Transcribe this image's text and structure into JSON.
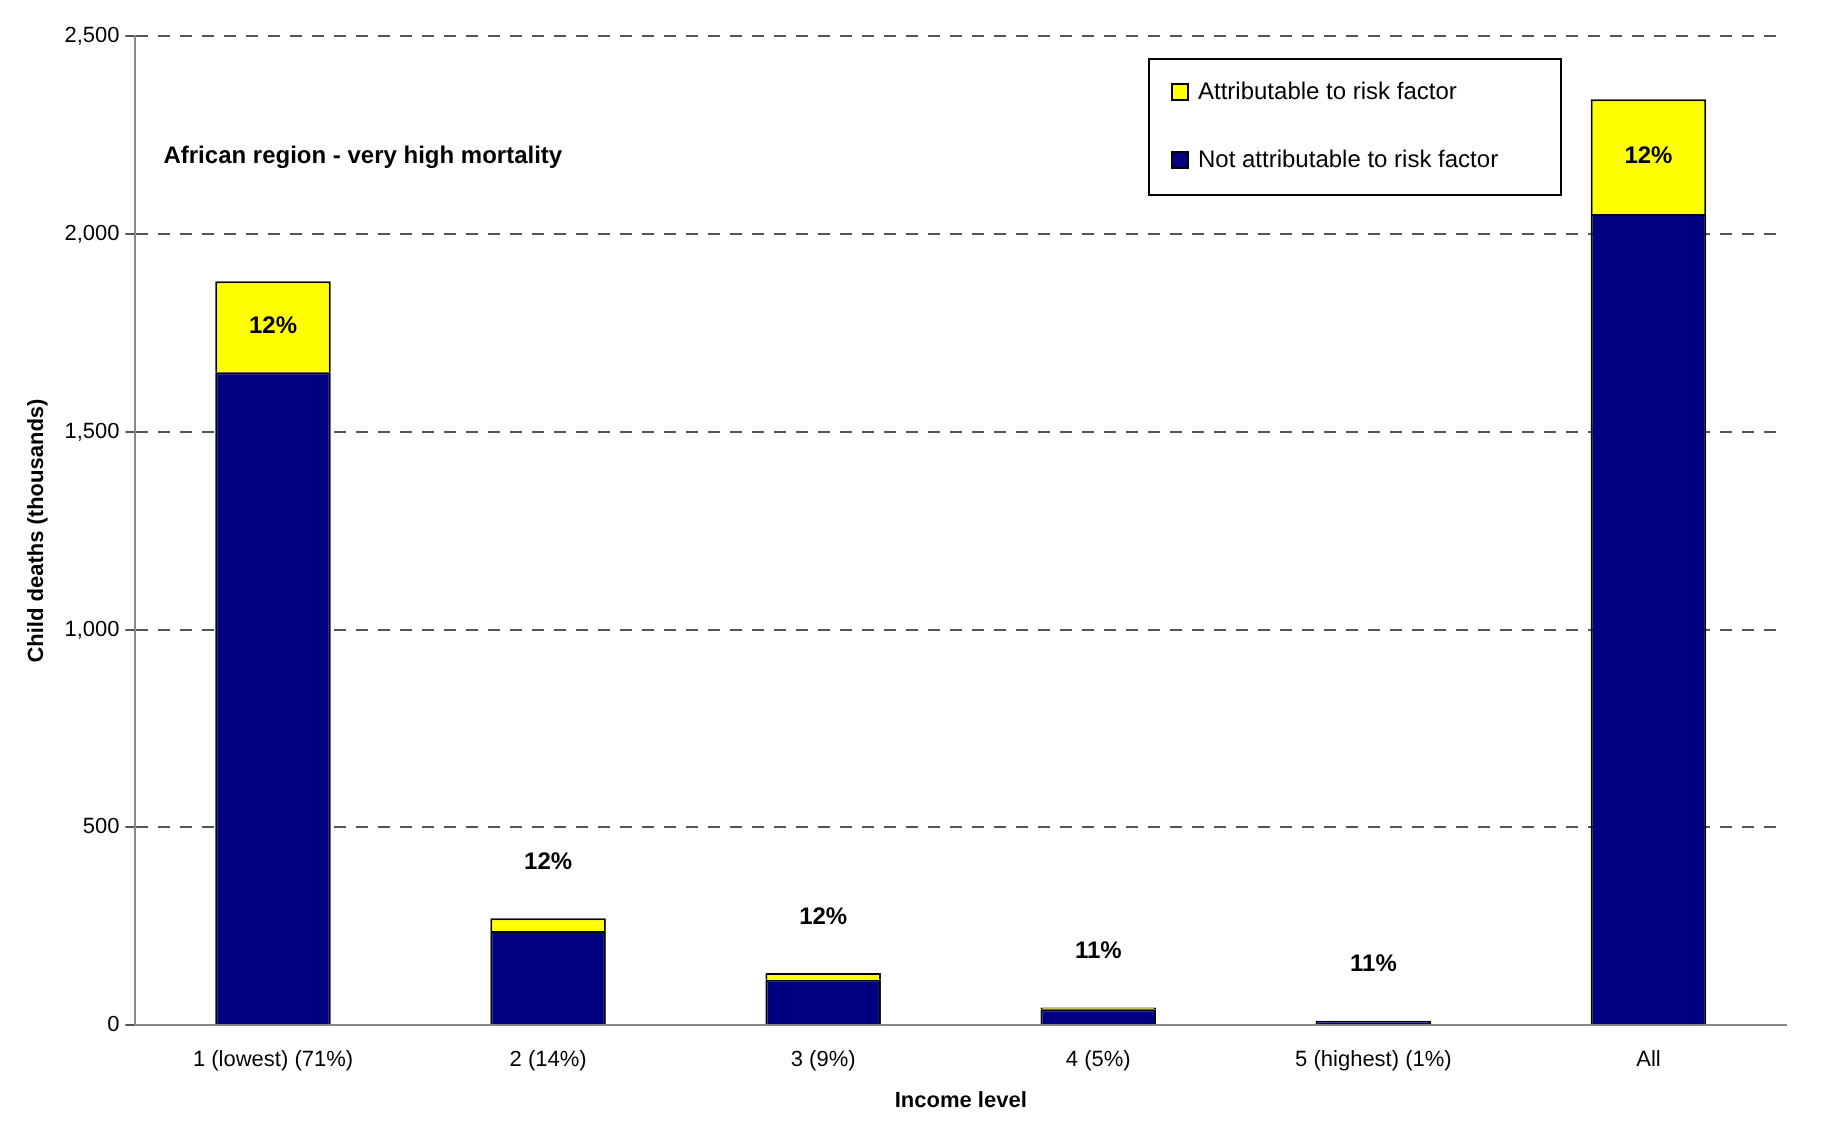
{
  "chart_data": {
    "type": "bar",
    "title": "African region - very high mortality",
    "xlabel": "Income level",
    "ylabel": "Child deaths (thousands)",
    "categories": [
      "1 (lowest) (71%)",
      "2 (14%)",
      "3 (9%)",
      "4 (5%)",
      "5 (highest) (1%)",
      "All"
    ],
    "stacked": true,
    "series": [
      {
        "name": "Not attributable to risk factor",
        "color": "#000080",
        "values": [
          1650,
          238,
          115,
          40,
          11,
          2050
        ]
      },
      {
        "name": "Attributable to risk factor",
        "color": "#ffff00",
        "values": [
          230,
          32,
          17,
          5,
          null,
          290
        ]
      }
    ],
    "annotations": [
      {
        "text": "12%",
        "x": "1 (lowest) (71%)",
        "y": 1880
      },
      {
        "text": "12%",
        "x": "2 (14%)",
        "y": 270
      },
      {
        "text": "12%",
        "x": "3 (9%)",
        "y": 132
      },
      {
        "text": "11%",
        "x": "4 (5%)",
        "y": 45
      },
      {
        "text": "11%",
        "x": "5 (highest) (1%)",
        "y": 12
      },
      {
        "text": "12%",
        "x": "All",
        "y": 2340
      }
    ],
    "ylim": [
      0,
      2500
    ],
    "yticks": [
      0,
      {
        "value": 500,
        "label": "500"
      },
      {
        "value": 1000,
        "label": "1,000"
      },
      {
        "value": 1500,
        "label": "1,500"
      },
      {
        "value": 2000,
        "label": "2,000"
      },
      {
        "value": 2500,
        "label": "2,500"
      }
    ],
    "grid": "y",
    "legend": "top right"
  }
}
